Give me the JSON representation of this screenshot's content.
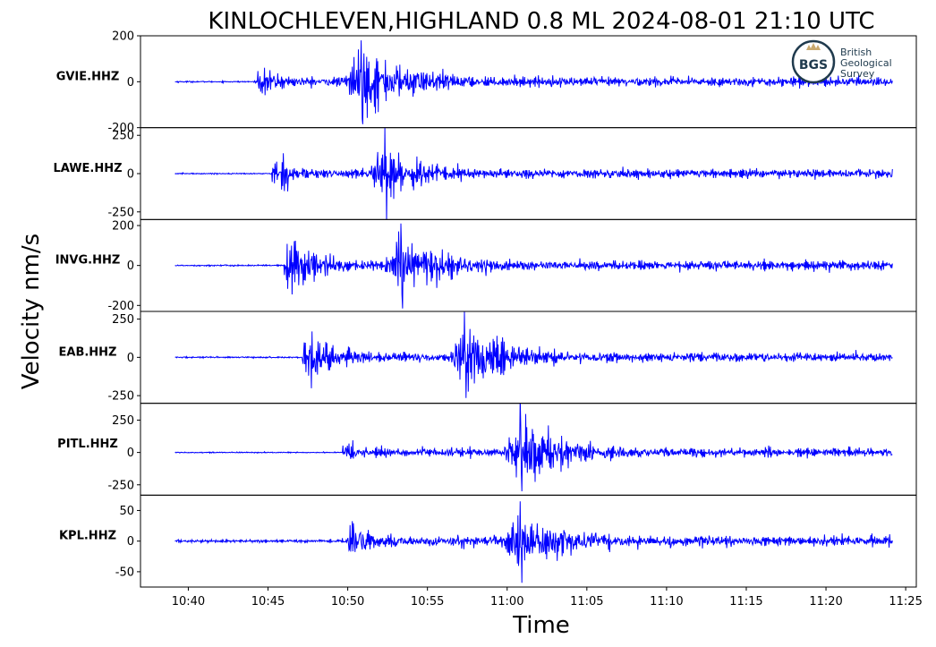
{
  "figure": {
    "title": "KINLOCHLEVEN,HIGHLAND 0.8 ML   2024-08-01 21:10 UTC",
    "ylabel": "Velocity nm/s",
    "xlabel": "Time",
    "logo": {
      "abbr": "BGS",
      "line1": "British",
      "line2": "Geological",
      "line3": "Survey"
    }
  },
  "chart_data": {
    "type": "line",
    "title": "KINLOCHLEVEN,HIGHLAND 0.8 ML   2024-08-01 21:10 UTC",
    "xlabel": "Time",
    "ylabel": "Velocity nm/s",
    "x_ticks": [
      "10:40",
      "10:45",
      "10:50",
      "10:55",
      "11:00",
      "11:05",
      "11:10",
      "11:15",
      "11:20",
      "11:25"
    ],
    "x_range": [
      "10:37:00",
      "11:25:40"
    ],
    "trace_start": "10:39:10",
    "trace_end": "11:24:10",
    "line_color": "#0000ff",
    "panels": [
      {
        "station": "GVIE.HHZ",
        "ylim": [
          -200,
          200
        ],
        "yticks": [
          {
            "v": 200,
            "l": "200"
          },
          {
            "v": 0,
            "l": "0"
          },
          {
            "v": -200,
            "l": "-200"
          }
        ],
        "noise": 3,
        "p_arrival": "10:44:20",
        "p_peak": 60,
        "s_arrival": "10:50:30",
        "s_peak": 150,
        "coda_end": 18,
        "max": 180,
        "min": -185
      },
      {
        "station": "LAWE.HHZ",
        "ylim": [
          -300,
          300
        ],
        "yticks": [
          {
            "v": 250,
            "l": "250"
          },
          {
            "v": 0,
            "l": "0"
          },
          {
            "v": -250,
            "l": "-250"
          }
        ],
        "noise": 4,
        "p_arrival": "10:45:10",
        "p_peak": 110,
        "s_arrival": "10:52:00",
        "s_peak": 170,
        "coda_end": 25,
        "max": 300,
        "min": -315
      },
      {
        "station": "INVG.HHZ",
        "ylim": [
          -230,
          230
        ],
        "yticks": [
          {
            "v": 200,
            "l": "200"
          },
          {
            "v": 0,
            "l": "0"
          },
          {
            "v": -200,
            "l": "-200"
          }
        ],
        "noise": 4,
        "p_arrival": "10:46:00",
        "p_peak": 160,
        "s_arrival": "10:53:00",
        "s_peak": 150,
        "coda_end": 20,
        "max": 210,
        "min": -215
      },
      {
        "station": "EAB.HHZ",
        "ylim": [
          -300,
          300
        ],
        "yticks": [
          {
            "v": 250,
            "l": "250"
          },
          {
            "v": 0,
            "l": "0"
          },
          {
            "v": -250,
            "l": "-250"
          }
        ],
        "noise": 5,
        "p_arrival": "10:47:10",
        "p_peak": 170,
        "s_arrival": "10:57:00",
        "s_peak": 220,
        "coda_end": 25,
        "max": 300,
        "min": -265
      },
      {
        "station": "PITL.HHZ",
        "ylim": [
          -330,
          380
        ],
        "yticks": [
          {
            "v": 250,
            "l": "250"
          },
          {
            "v": 0,
            "l": "0"
          },
          {
            "v": -250,
            "l": "-250"
          }
        ],
        "noise": 4,
        "p_arrival": "10:49:40",
        "p_peak": 90,
        "s_arrival": "11:00:30",
        "s_peak": 270,
        "coda_end": 30,
        "max": 420,
        "min": -300
      },
      {
        "station": "KPL.HHZ",
        "ylim": [
          -75,
          75
        ],
        "yticks": [
          {
            "v": 50,
            "l": "50"
          },
          {
            "v": 0,
            "l": "0"
          },
          {
            "v": -50,
            "l": "-50"
          }
        ],
        "noise": 2.5,
        "p_arrival": "10:50:00",
        "p_peak": 25,
        "s_arrival": "11:00:30",
        "s_peak": 48,
        "coda_end": 6,
        "max": 65,
        "min": -68
      }
    ]
  }
}
